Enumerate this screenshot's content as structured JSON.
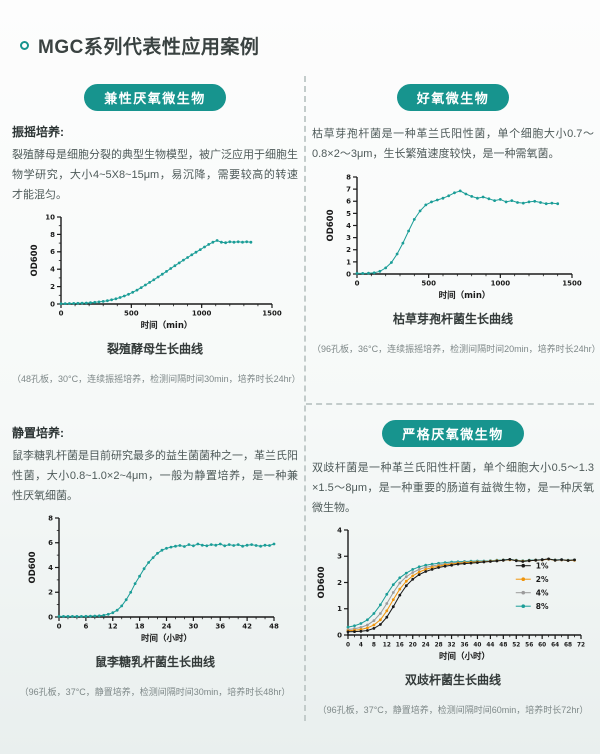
{
  "page": {
    "title": "MGC系列代表性应用案例"
  },
  "colors": {
    "accent": "#17948e",
    "series_teal": "#1b9d97",
    "series_orange": "#f0940a",
    "series_gray": "#9b9b9b",
    "series_black": "#1a1a1a"
  },
  "sections": {
    "facultative": {
      "badge": "兼性厌氧微生物",
      "method_label": "振摇培养:",
      "description": "裂殖酵母是细胞分裂的典型生物模型，被广泛应用于细胞生物学研究，大小4~5X8~15μm，易沉降，需要较高的转速才能混匀。",
      "chart_caption": "裂殖酵母生长曲线",
      "chart_note": "（48孔板，30°C，连续振摇培养，检测间隔时间30min，培养时长24hr）"
    },
    "aerobic": {
      "badge": "好氧微生物",
      "description": "枯草芽孢杆菌是一种革兰氏阳性菌，单个细胞大小0.7～0.8×2～3μm，生长繁殖速度较快，是一种需氧菌。",
      "chart_caption": "枯草芽孢杆菌生长曲线",
      "chart_note": "（96孔板，36°C，连续振摇培养，检测间隔时间20min，培养时长24hr）"
    },
    "static_culture": {
      "method_label": "静置培养:",
      "description": "鼠李糖乳杆菌是目前研究最多的益生菌菌种之一，革兰氏阳性菌，大小0.8~1.0×2~4μm，一般为静置培养，是一种兼性厌氧细菌。",
      "chart_caption": "鼠李糖乳杆菌生长曲线",
      "chart_note": "（96孔板，37°C，静置培养，检测间隔时间30min，培养时长48hr）"
    },
    "anaerobic": {
      "badge": "严格厌氧微生物",
      "description": "双歧杆菌是一种革兰氏阳性杆菌，单个细胞大小0.5～1.3 ×1.5～8μm，是一种重要的肠道有益微生物，是一种厌氧微生物。",
      "chart_caption": "双歧杆菌生长曲线",
      "chart_note": "（96孔板，37°C，静置培养，检测间隔时间60min，培养时长72hr）"
    }
  },
  "chart_data": [
    {
      "id": "yeast",
      "type": "scatter",
      "title": "裂殖酵母生长曲线",
      "xlabel": "时间（min）",
      "ylabel": "OD600",
      "xlim": [
        0,
        1500
      ],
      "ylim": [
        0,
        10
      ],
      "xticks": [
        0,
        500,
        1000,
        1500
      ],
      "yticks": [
        0,
        2,
        4,
        6,
        8,
        10
      ],
      "xminor": 100,
      "yminor": 1,
      "tick_font": 7,
      "legend": false,
      "series": [
        {
          "name": "OD600",
          "color": "#1b9d97",
          "x": [
            0,
            30,
            60,
            90,
            120,
            150,
            180,
            210,
            240,
            270,
            300,
            330,
            360,
            390,
            420,
            450,
            480,
            510,
            540,
            570,
            600,
            630,
            660,
            690,
            720,
            750,
            780,
            810,
            840,
            870,
            900,
            930,
            960,
            990,
            1020,
            1050,
            1080,
            1110,
            1140,
            1170,
            1200,
            1230,
            1260,
            1290,
            1320,
            1350
          ],
          "y": [
            0.05,
            0.05,
            0.06,
            0.07,
            0.08,
            0.1,
            0.12,
            0.15,
            0.19,
            0.24,
            0.3,
            0.38,
            0.48,
            0.6,
            0.75,
            0.92,
            1.12,
            1.35,
            1.6,
            1.88,
            2.18,
            2.48,
            2.78,
            3.1,
            3.42,
            3.75,
            4.08,
            4.4,
            4.72,
            5.05,
            5.35,
            5.65,
            5.95,
            6.25,
            6.55,
            6.85,
            7.1,
            7.3,
            7.1,
            7.05,
            7.15,
            7.1,
            7.15,
            7.1,
            7.15,
            7.1
          ]
        }
      ]
    },
    {
      "id": "bacillus",
      "type": "scatter",
      "title": "枯草芽孢杆菌生长曲线",
      "xlabel": "时间（min）",
      "ylabel": "OD600",
      "xlim": [
        0,
        1500
      ],
      "ylim": [
        0,
        8
      ],
      "xticks": [
        0,
        500,
        1000,
        1500
      ],
      "yticks": [
        0,
        1,
        2,
        3,
        4,
        5,
        6,
        7,
        8
      ],
      "xminor": 100,
      "yminor": 0,
      "tick_font": 7,
      "legend": false,
      "series": [
        {
          "name": "OD600",
          "color": "#1b9d97",
          "x": [
            0,
            40,
            80,
            120,
            160,
            200,
            240,
            280,
            320,
            360,
            400,
            440,
            480,
            520,
            560,
            600,
            640,
            680,
            720,
            760,
            800,
            840,
            880,
            920,
            960,
            1000,
            1040,
            1080,
            1120,
            1160,
            1200,
            1240,
            1280,
            1320,
            1360,
            1400
          ],
          "y": [
            0.05,
            0.05,
            0.07,
            0.1,
            0.22,
            0.5,
            0.95,
            1.65,
            2.55,
            3.55,
            4.5,
            5.2,
            5.7,
            5.95,
            6.1,
            6.25,
            6.45,
            6.7,
            6.85,
            6.6,
            6.4,
            6.25,
            6.35,
            6.2,
            6.05,
            6.15,
            5.95,
            6.05,
            5.9,
            5.85,
            5.95,
            6.0,
            5.9,
            5.8,
            5.85,
            5.8
          ]
        }
      ]
    },
    {
      "id": "lactobacillus",
      "type": "scatter",
      "title": "鼠李糖乳杆菌生长曲线",
      "xlabel": "时间（小时）",
      "ylabel": "OD600",
      "xlim": [
        0,
        48
      ],
      "ylim": [
        0,
        8
      ],
      "xticks": [
        0,
        6,
        12,
        18,
        24,
        30,
        36,
        42,
        48
      ],
      "yticks": [
        0,
        2,
        4,
        6,
        8
      ],
      "xminor": 2,
      "yminor": 1,
      "tick_font": 7,
      "legend": false,
      "series": [
        {
          "name": "OD600",
          "color": "#1b9d97",
          "x": [
            0,
            1,
            2,
            3,
            4,
            5,
            6,
            7,
            8,
            9,
            10,
            11,
            12,
            13,
            14,
            15,
            16,
            17,
            18,
            19,
            20,
            21,
            22,
            23,
            24,
            25,
            26,
            27,
            28,
            29,
            30,
            31,
            32,
            33,
            34,
            35,
            36,
            37,
            38,
            39,
            40,
            41,
            42,
            43,
            44,
            45,
            46,
            47,
            48
          ],
          "y": [
            0.05,
            0.05,
            0.05,
            0.05,
            0.05,
            0.05,
            0.06,
            0.07,
            0.08,
            0.1,
            0.14,
            0.22,
            0.35,
            0.55,
            0.9,
            1.4,
            2.0,
            2.7,
            3.3,
            3.9,
            4.4,
            4.8,
            5.15,
            5.4,
            5.55,
            5.65,
            5.72,
            5.78,
            5.7,
            5.85,
            5.75,
            5.9,
            5.8,
            5.75,
            5.85,
            5.8,
            5.9,
            5.75,
            5.85,
            5.78,
            5.85,
            5.72,
            5.8,
            5.85,
            5.78,
            5.72,
            5.8,
            5.78,
            5.9
          ]
        }
      ]
    },
    {
      "id": "bifidobacterium",
      "type": "scatter",
      "title": "双歧杆菌生长曲线",
      "xlabel": "时间（小时）",
      "ylabel": "OD600",
      "xlim": [
        0,
        72
      ],
      "ylim": [
        0,
        4
      ],
      "xticks": [
        0,
        4,
        8,
        12,
        16,
        20,
        24,
        28,
        32,
        36,
        40,
        44,
        48,
        52,
        56,
        60,
        64,
        68,
        72
      ],
      "yticks": [
        0,
        1,
        2,
        3,
        4
      ],
      "xminor": 2,
      "yminor": 0,
      "tick_font": 5.8,
      "legend": true,
      "series": [
        {
          "name": "1%",
          "color": "#1a1a1a",
          "x": [
            0,
            2,
            4,
            6,
            8,
            10,
            12,
            14,
            16,
            18,
            20,
            22,
            24,
            26,
            28,
            30,
            32,
            34,
            36,
            38,
            40,
            42,
            44,
            46,
            48,
            50,
            52,
            54,
            56,
            58,
            60,
            62,
            64,
            66,
            68,
            70
          ],
          "y": [
            0.12,
            0.13,
            0.14,
            0.17,
            0.25,
            0.4,
            0.68,
            1.08,
            1.52,
            1.88,
            2.12,
            2.3,
            2.42,
            2.5,
            2.57,
            2.62,
            2.66,
            2.7,
            2.72,
            2.74,
            2.76,
            2.78,
            2.8,
            2.82,
            2.85,
            2.88,
            2.83,
            2.8,
            2.83,
            2.85,
            2.87,
            2.9,
            2.85,
            2.87,
            2.84,
            2.86
          ]
        },
        {
          "name": "2%",
          "color": "#f0940a",
          "x": [
            0,
            2,
            4,
            6,
            8,
            10,
            12,
            14,
            16,
            18,
            20,
            22,
            24,
            26,
            28,
            30,
            32,
            34,
            36,
            38,
            40,
            42,
            44,
            46,
            48,
            50,
            52,
            54,
            56,
            58,
            60,
            62,
            64,
            66,
            68,
            70
          ],
          "y": [
            0.16,
            0.18,
            0.21,
            0.27,
            0.38,
            0.58,
            0.92,
            1.35,
            1.75,
            2.05,
            2.25,
            2.4,
            2.5,
            2.57,
            2.62,
            2.67,
            2.7,
            2.73,
            2.75,
            2.77,
            2.78,
            2.79,
            2.81,
            2.83,
            2.85,
            2.87,
            2.84,
            2.81,
            2.83,
            2.85,
            2.86,
            2.89,
            2.85,
            2.86,
            2.84,
            2.85
          ]
        },
        {
          "name": "4%",
          "color": "#9b9b9b",
          "x": [
            0,
            2,
            4,
            6,
            8,
            10,
            12,
            14,
            16,
            18,
            20,
            22,
            24,
            26,
            28,
            30,
            32,
            34,
            36,
            38,
            40,
            42,
            44,
            46,
            48,
            50,
            52,
            54,
            56,
            58,
            60,
            62,
            64,
            66,
            68,
            70
          ],
          "y": [
            0.21,
            0.24,
            0.29,
            0.38,
            0.55,
            0.82,
            1.2,
            1.62,
            1.98,
            2.22,
            2.38,
            2.5,
            2.58,
            2.63,
            2.67,
            2.7,
            2.73,
            2.75,
            2.77,
            2.78,
            2.79,
            2.8,
            2.82,
            2.84,
            2.85,
            2.87,
            2.84,
            2.82,
            2.84,
            2.85,
            2.86,
            2.88,
            2.85,
            2.86,
            2.84,
            2.85
          ]
        },
        {
          "name": "8%",
          "color": "#1b9d97",
          "x": [
            0,
            2,
            4,
            6,
            8,
            10,
            12,
            14,
            16,
            18,
            20,
            22,
            24,
            26,
            28,
            30,
            32,
            34,
            36,
            38,
            40,
            42,
            44,
            46,
            48,
            50,
            52,
            54,
            56,
            58,
            60,
            62,
            64,
            66,
            68,
            70
          ],
          "y": [
            0.3,
            0.35,
            0.44,
            0.58,
            0.82,
            1.15,
            1.55,
            1.92,
            2.18,
            2.36,
            2.5,
            2.6,
            2.66,
            2.7,
            2.73,
            2.76,
            2.78,
            2.79,
            2.8,
            2.81,
            2.82,
            2.82,
            2.83,
            2.85,
            2.86,
            2.88,
            2.85,
            2.83,
            2.85,
            2.86,
            2.87,
            2.89,
            2.86,
            2.87,
            2.85,
            2.86
          ]
        }
      ]
    }
  ]
}
